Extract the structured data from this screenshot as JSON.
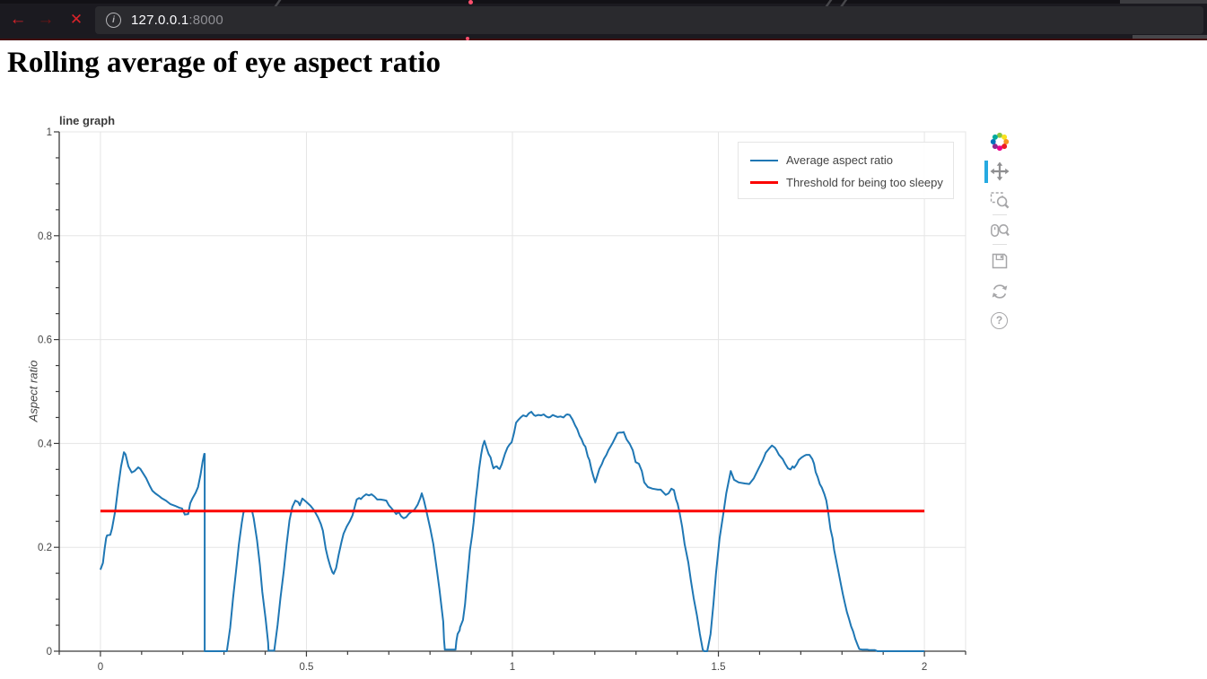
{
  "browser": {
    "url_host": "127.0.0.1",
    "url_port": ":8000"
  },
  "icons": {
    "back": "←",
    "forward": "→",
    "stop": "✕",
    "info": "i",
    "help": "?"
  },
  "page": {
    "heading": "Rolling average of eye aspect ratio"
  },
  "toolbar": {
    "tools": [
      "bokeh-logo",
      "pan",
      "box-zoom",
      "wheel-zoom",
      "save",
      "reset",
      "help"
    ],
    "active_tool": "pan"
  },
  "colors": {
    "series_blue": "#1f77b4",
    "threshold_red": "#fb0300",
    "grid": "#e5e5e5",
    "axis": "#3b3b3b",
    "tick_text": "#444444",
    "active_tool_bar": "#26aae1"
  },
  "chart_data": {
    "type": "line",
    "title": "line graph",
    "xlabel": "",
    "ylabel": "Aspect ratio",
    "xlim": [
      -0.1,
      2.1
    ],
    "ylim": [
      0,
      1
    ],
    "x_ticks": [
      0,
      0.5,
      1,
      1.5,
      2
    ],
    "y_ticks": [
      0,
      0.2,
      0.4,
      0.6,
      0.8,
      1
    ],
    "x_minor_step": 0.1,
    "y_minor_step": 0.05,
    "grid": true,
    "legend_position": "top_right",
    "series": [
      {
        "name": "Average aspect ratio",
        "color": "#1f77b4",
        "width": 2,
        "points": [
          [
            0.0,
            0.157
          ],
          [
            0.006,
            0.17
          ],
          [
            0.01,
            0.196
          ],
          [
            0.014,
            0.218
          ],
          [
            0.016,
            0.223
          ],
          [
            0.024,
            0.224
          ],
          [
            0.028,
            0.236
          ],
          [
            0.036,
            0.27
          ],
          [
            0.043,
            0.316
          ],
          [
            0.05,
            0.356
          ],
          [
            0.057,
            0.383
          ],
          [
            0.061,
            0.379
          ],
          [
            0.068,
            0.356
          ],
          [
            0.076,
            0.344
          ],
          [
            0.083,
            0.347
          ],
          [
            0.092,
            0.354
          ],
          [
            0.097,
            0.351
          ],
          [
            0.111,
            0.333
          ],
          [
            0.12,
            0.318
          ],
          [
            0.126,
            0.309
          ],
          [
            0.133,
            0.304
          ],
          [
            0.142,
            0.299
          ],
          [
            0.148,
            0.295
          ],
          [
            0.159,
            0.29
          ],
          [
            0.17,
            0.283
          ],
          [
            0.181,
            0.28
          ],
          [
            0.192,
            0.276
          ],
          [
            0.198,
            0.275
          ],
          [
            0.205,
            0.263
          ],
          [
            0.213,
            0.264
          ],
          [
            0.218,
            0.285
          ],
          [
            0.224,
            0.295
          ],
          [
            0.231,
            0.305
          ],
          [
            0.237,
            0.316
          ],
          [
            0.243,
            0.34
          ],
          [
            0.248,
            0.365
          ],
          [
            0.252,
            0.38
          ],
          [
            0.253,
            0.38
          ],
          [
            0.253,
            0.0
          ],
          [
            0.307,
            0.0
          ],
          [
            0.315,
            0.045
          ],
          [
            0.322,
            0.102
          ],
          [
            0.329,
            0.154
          ],
          [
            0.336,
            0.206
          ],
          [
            0.343,
            0.247
          ],
          [
            0.347,
            0.266
          ],
          [
            0.349,
            0.27
          ],
          [
            0.368,
            0.27
          ],
          [
            0.372,
            0.256
          ],
          [
            0.38,
            0.214
          ],
          [
            0.387,
            0.166
          ],
          [
            0.393,
            0.114
          ],
          [
            0.401,
            0.062
          ],
          [
            0.407,
            0.016
          ],
          [
            0.408,
            0.001
          ],
          [
            0.422,
            0.001
          ],
          [
            0.43,
            0.05
          ],
          [
            0.437,
            0.102
          ],
          [
            0.445,
            0.154
          ],
          [
            0.452,
            0.206
          ],
          [
            0.459,
            0.252
          ],
          [
            0.466,
            0.278
          ],
          [
            0.473,
            0.29
          ],
          [
            0.48,
            0.287
          ],
          [
            0.484,
            0.281
          ],
          [
            0.49,
            0.294
          ],
          [
            0.5,
            0.287
          ],
          [
            0.51,
            0.28
          ],
          [
            0.518,
            0.272
          ],
          [
            0.528,
            0.258
          ],
          [
            0.535,
            0.245
          ],
          [
            0.54,
            0.232
          ],
          [
            0.547,
            0.197
          ],
          [
            0.552,
            0.18
          ],
          [
            0.558,
            0.163
          ],
          [
            0.563,
            0.152
          ],
          [
            0.566,
            0.149
          ],
          [
            0.572,
            0.16
          ],
          [
            0.578,
            0.185
          ],
          [
            0.585,
            0.21
          ],
          [
            0.59,
            0.226
          ],
          [
            0.598,
            0.24
          ],
          [
            0.605,
            0.25
          ],
          [
            0.612,
            0.262
          ],
          [
            0.618,
            0.28
          ],
          [
            0.622,
            0.292
          ],
          [
            0.628,
            0.295
          ],
          [
            0.632,
            0.293
          ],
          [
            0.638,
            0.298
          ],
          [
            0.645,
            0.302
          ],
          [
            0.652,
            0.3
          ],
          [
            0.658,
            0.302
          ],
          [
            0.665,
            0.298
          ],
          [
            0.672,
            0.292
          ],
          [
            0.68,
            0.292
          ],
          [
            0.688,
            0.291
          ],
          [
            0.694,
            0.29
          ],
          [
            0.7,
            0.281
          ],
          [
            0.708,
            0.274
          ],
          [
            0.714,
            0.268
          ],
          [
            0.718,
            0.264
          ],
          [
            0.724,
            0.268
          ],
          [
            0.73,
            0.26
          ],
          [
            0.736,
            0.256
          ],
          [
            0.742,
            0.258
          ],
          [
            0.748,
            0.264
          ],
          [
            0.754,
            0.268
          ],
          [
            0.762,
            0.272
          ],
          [
            0.77,
            0.282
          ],
          [
            0.776,
            0.294
          ],
          [
            0.78,
            0.304
          ],
          [
            0.785,
            0.291
          ],
          [
            0.79,
            0.274
          ],
          [
            0.801,
            0.235
          ],
          [
            0.808,
            0.206
          ],
          [
            0.812,
            0.183
          ],
          [
            0.817,
            0.154
          ],
          [
            0.823,
            0.119
          ],
          [
            0.828,
            0.085
          ],
          [
            0.832,
            0.057
          ],
          [
            0.834,
            0.022
          ],
          [
            0.836,
            0.003
          ],
          [
            0.862,
            0.003
          ],
          [
            0.864,
            0.02
          ],
          [
            0.867,
            0.033
          ],
          [
            0.872,
            0.04
          ],
          [
            0.873,
            0.046
          ],
          [
            0.88,
            0.06
          ],
          [
            0.885,
            0.09
          ],
          [
            0.889,
            0.126
          ],
          [
            0.893,
            0.16
          ],
          [
            0.897,
            0.195
          ],
          [
            0.902,
            0.222
          ],
          [
            0.906,
            0.248
          ],
          [
            0.911,
            0.292
          ],
          [
            0.915,
            0.32
          ],
          [
            0.919,
            0.35
          ],
          [
            0.924,
            0.378
          ],
          [
            0.928,
            0.395
          ],
          [
            0.932,
            0.405
          ],
          [
            0.937,
            0.392
          ],
          [
            0.942,
            0.38
          ],
          [
            0.947,
            0.373
          ],
          [
            0.951,
            0.36
          ],
          [
            0.954,
            0.352
          ],
          [
            0.958,
            0.355
          ],
          [
            0.962,
            0.356
          ],
          [
            0.966,
            0.352
          ],
          [
            0.969,
            0.351
          ],
          [
            0.974,
            0.36
          ],
          [
            0.978,
            0.37
          ],
          [
            0.982,
            0.38
          ],
          [
            0.988,
            0.392
          ],
          [
            0.993,
            0.398
          ],
          [
            0.998,
            0.402
          ],
          [
            1.004,
            0.42
          ],
          [
            1.009,
            0.44
          ],
          [
            1.015,
            0.446
          ],
          [
            1.02,
            0.45
          ],
          [
            1.026,
            0.454
          ],
          [
            1.034,
            0.452
          ],
          [
            1.04,
            0.458
          ],
          [
            1.046,
            0.461
          ],
          [
            1.052,
            0.455
          ],
          [
            1.056,
            0.453
          ],
          [
            1.063,
            0.455
          ],
          [
            1.07,
            0.454
          ],
          [
            1.076,
            0.456
          ],
          [
            1.082,
            0.452
          ],
          [
            1.088,
            0.45
          ],
          [
            1.092,
            0.451
          ],
          [
            1.098,
            0.455
          ],
          [
            1.103,
            0.453
          ],
          [
            1.11,
            0.451
          ],
          [
            1.117,
            0.452
          ],
          [
            1.124,
            0.45
          ],
          [
            1.13,
            0.455
          ],
          [
            1.133,
            0.456
          ],
          [
            1.139,
            0.455
          ],
          [
            1.146,
            0.446
          ],
          [
            1.152,
            0.435
          ],
          [
            1.157,
            0.428
          ],
          [
            1.163,
            0.415
          ],
          [
            1.168,
            0.408
          ],
          [
            1.173,
            0.398
          ],
          [
            1.177,
            0.394
          ],
          [
            1.183,
            0.375
          ],
          [
            1.187,
            0.368
          ],
          [
            1.192,
            0.35
          ],
          [
            1.196,
            0.338
          ],
          [
            1.201,
            0.325
          ],
          [
            1.206,
            0.338
          ],
          [
            1.211,
            0.351
          ],
          [
            1.217,
            0.36
          ],
          [
            1.222,
            0.37
          ],
          [
            1.228,
            0.378
          ],
          [
            1.233,
            0.387
          ],
          [
            1.239,
            0.395
          ],
          [
            1.244,
            0.402
          ],
          [
            1.25,
            0.412
          ],
          [
            1.255,
            0.42
          ],
          [
            1.261,
            0.421
          ],
          [
            1.266,
            0.421
          ],
          [
            1.27,
            0.422
          ],
          [
            1.277,
            0.408
          ],
          [
            1.285,
            0.399
          ],
          [
            1.292,
            0.387
          ],
          [
            1.299,
            0.364
          ],
          [
            1.307,
            0.361
          ],
          [
            1.314,
            0.347
          ],
          [
            1.32,
            0.325
          ],
          [
            1.329,
            0.316
          ],
          [
            1.34,
            0.313
          ],
          [
            1.353,
            0.311
          ],
          [
            1.36,
            0.311
          ],
          [
            1.372,
            0.301
          ],
          [
            1.379,
            0.304
          ],
          [
            1.386,
            0.313
          ],
          [
            1.392,
            0.31
          ],
          [
            1.397,
            0.292
          ],
          [
            1.401,
            0.284
          ],
          [
            1.405,
            0.27
          ],
          [
            1.412,
            0.24
          ],
          [
            1.418,
            0.206
          ],
          [
            1.427,
            0.171
          ],
          [
            1.433,
            0.137
          ],
          [
            1.44,
            0.102
          ],
          [
            1.448,
            0.068
          ],
          [
            1.455,
            0.033
          ],
          [
            1.459,
            0.016
          ],
          [
            1.462,
            0.003
          ],
          [
            1.465,
            0.0
          ],
          [
            1.473,
            0.0
          ],
          [
            1.481,
            0.033
          ],
          [
            1.488,
            0.091
          ],
          [
            1.494,
            0.149
          ],
          [
            1.503,
            0.218
          ],
          [
            1.513,
            0.27
          ],
          [
            1.519,
            0.304
          ],
          [
            1.53,
            0.347
          ],
          [
            1.538,
            0.33
          ],
          [
            1.549,
            0.325
          ],
          [
            1.564,
            0.323
          ],
          [
            1.575,
            0.322
          ],
          [
            1.586,
            0.333
          ],
          [
            1.597,
            0.351
          ],
          [
            1.608,
            0.368
          ],
          [
            1.615,
            0.382
          ],
          [
            1.623,
            0.39
          ],
          [
            1.63,
            0.396
          ],
          [
            1.637,
            0.392
          ],
          [
            1.641,
            0.387
          ],
          [
            1.647,
            0.378
          ],
          [
            1.656,
            0.37
          ],
          [
            1.662,
            0.361
          ],
          [
            1.669,
            0.352
          ],
          [
            1.675,
            0.35
          ],
          [
            1.68,
            0.356
          ],
          [
            1.684,
            0.353
          ],
          [
            1.69,
            0.36
          ],
          [
            1.695,
            0.368
          ],
          [
            1.702,
            0.373
          ],
          [
            1.708,
            0.376
          ],
          [
            1.713,
            0.378
          ],
          [
            1.721,
            0.378
          ],
          [
            1.728,
            0.37
          ],
          [
            1.732,
            0.361
          ],
          [
            1.736,
            0.345
          ],
          [
            1.741,
            0.335
          ],
          [
            1.746,
            0.322
          ],
          [
            1.751,
            0.315
          ],
          [
            1.757,
            0.303
          ],
          [
            1.762,
            0.29
          ],
          [
            1.766,
            0.27
          ],
          [
            1.772,
            0.235
          ],
          [
            1.777,
            0.218
          ],
          [
            1.781,
            0.195
          ],
          [
            1.786,
            0.175
          ],
          [
            1.791,
            0.155
          ],
          [
            1.797,
            0.13
          ],
          [
            1.802,
            0.11
          ],
          [
            1.807,
            0.092
          ],
          [
            1.812,
            0.075
          ],
          [
            1.817,
            0.062
          ],
          [
            1.822,
            0.048
          ],
          [
            1.827,
            0.038
          ],
          [
            1.832,
            0.024
          ],
          [
            1.838,
            0.012
          ],
          [
            1.842,
            0.004
          ],
          [
            1.85,
            0.003
          ],
          [
            1.862,
            0.003
          ],
          [
            1.868,
            0.002
          ],
          [
            1.88,
            0.002
          ],
          [
            1.886,
            0.0
          ],
          [
            1.92,
            0.0
          ],
          [
            1.96,
            0.0
          ],
          [
            2.0,
            0.0
          ]
        ]
      },
      {
        "name": "Threshold for being too sleepy",
        "color": "#fb0300",
        "width": 3,
        "points": [
          [
            0.0,
            0.27
          ],
          [
            2.0,
            0.27
          ]
        ]
      }
    ]
  }
}
